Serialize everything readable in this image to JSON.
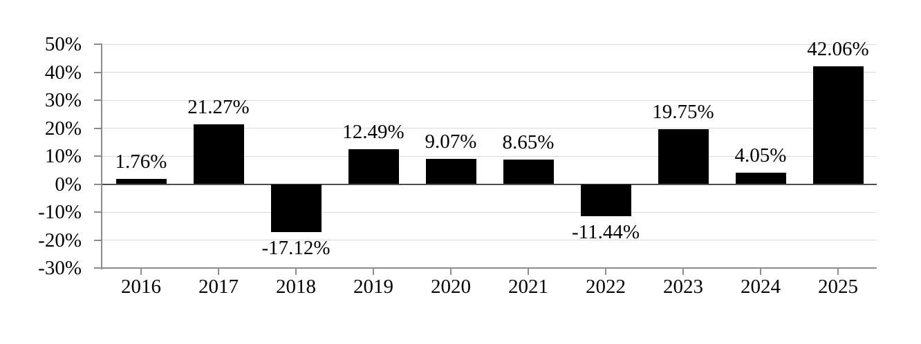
{
  "chart_data": {
    "type": "bar",
    "title": "",
    "xlabel": "",
    "ylabel": "",
    "categories": [
      "2016",
      "2017",
      "2018",
      "2019",
      "2020",
      "2021",
      "2022",
      "2023",
      "2024",
      "2025"
    ],
    "values": [
      1.76,
      21.27,
      -17.12,
      12.49,
      9.07,
      8.65,
      -11.44,
      19.75,
      4.05,
      42.06
    ],
    "data_labels": [
      "1.76%",
      "21.27%",
      "-17.12%",
      "12.49%",
      "9.07%",
      "8.65%",
      "-11.44%",
      "19.75%",
      "4.05%",
      "42.06%"
    ],
    "y_tick_labels": [
      "50%",
      "40%",
      "30%",
      "20%",
      "10%",
      "0%",
      "-10%",
      "-20%",
      "-30%"
    ],
    "y_tick_values": [
      50,
      40,
      30,
      20,
      10,
      0,
      -10,
      -20,
      -30
    ],
    "ylim": [
      -30,
      50
    ],
    "grid": true,
    "legend": false,
    "colors": {
      "bar": "#000000",
      "gridline": "#d9d9d9",
      "axis": "#8c8c8c",
      "zero_line": "#4d4d4d",
      "text": "#000000",
      "background": "#ffffff"
    }
  }
}
